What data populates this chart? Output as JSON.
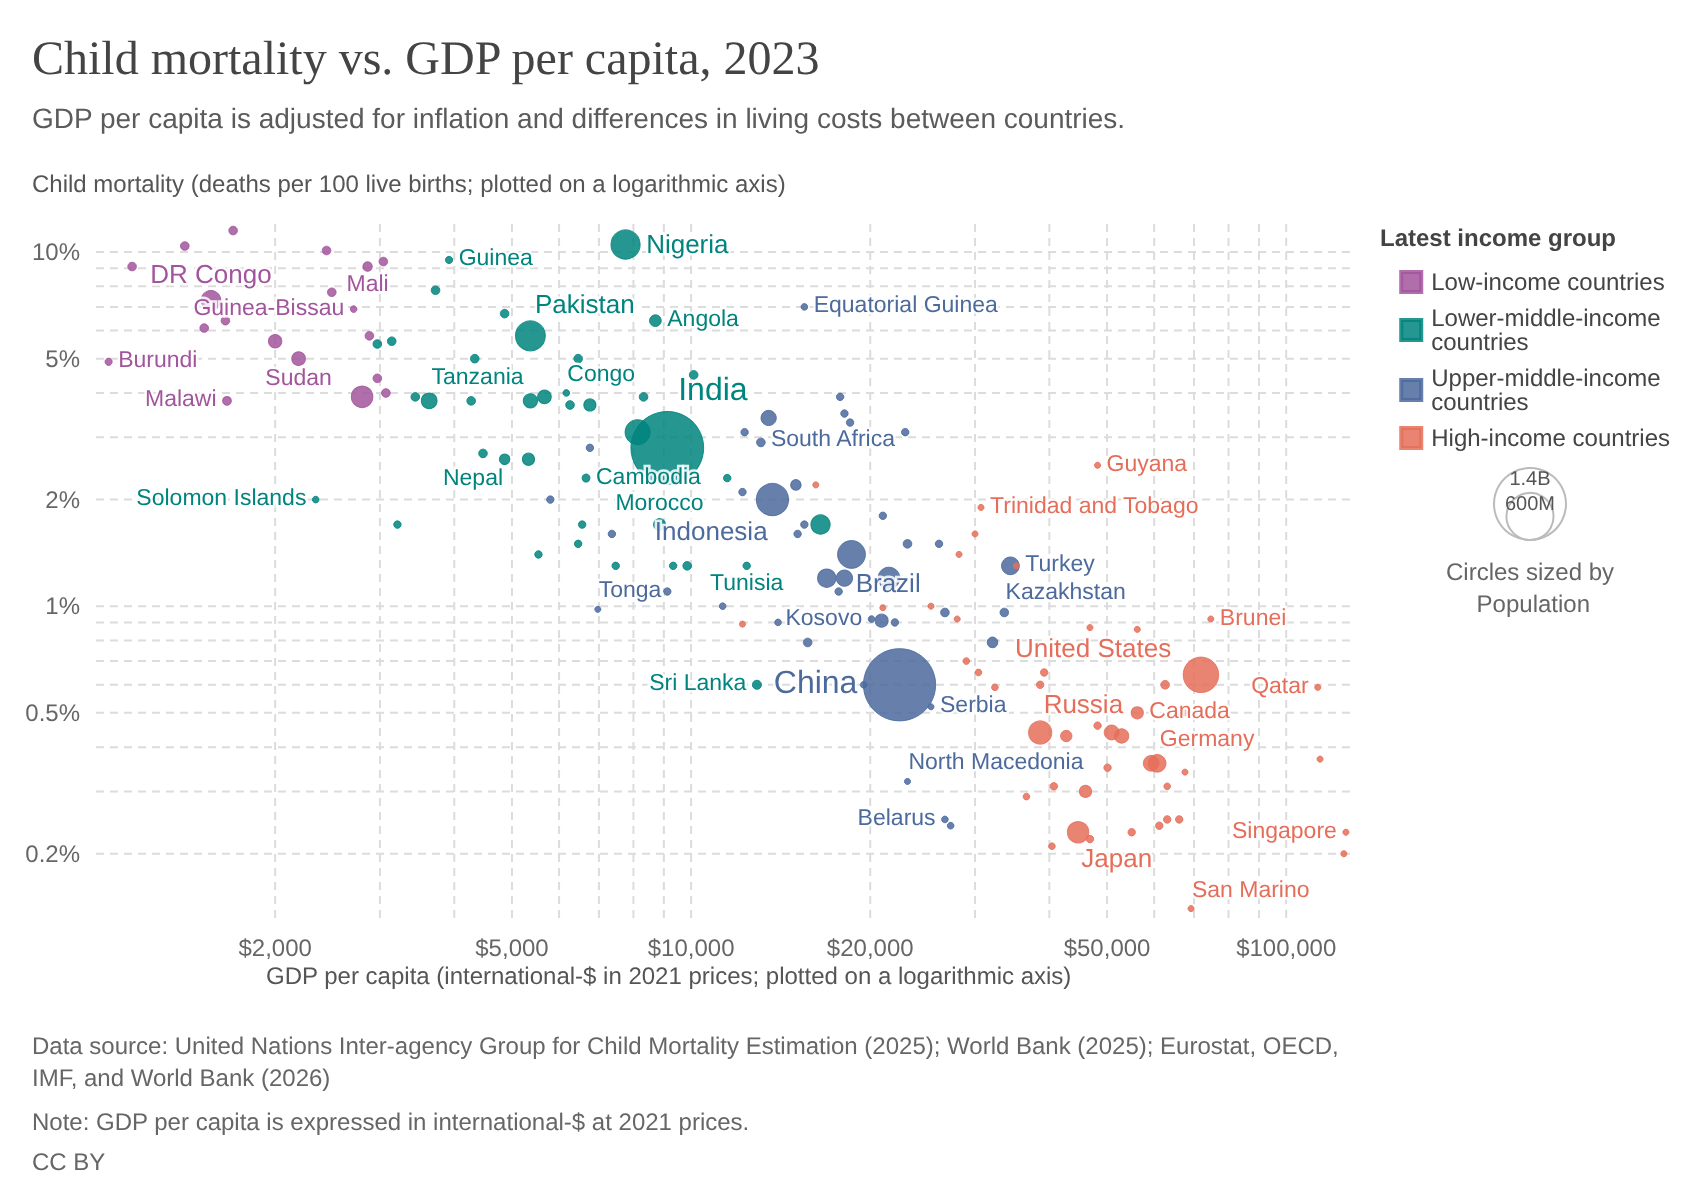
{
  "chart_data": {
    "type": "bubble",
    "title": "Child mortality vs. GDP per capita, 2023",
    "subtitle": "GDP per capita is adjusted for inflation and differences in living costs between countries.",
    "xlabel": "GDP per capita (international-$ in 2021 prices; plotted on a logarithmic axis)",
    "ylabel": "Child mortality (deaths per 100 live births; plotted on a logarithmic axis)",
    "legend_title": "Latest income group",
    "legend": "top right",
    "grid": true,
    "log": "xy",
    "marker": "circle",
    "xlim": [
      1000,
      130000
    ],
    "ylim": [
      0.13,
      12
    ],
    "xticks": [
      {
        "value": 2000,
        "label": "$2,000"
      },
      {
        "value": 3000,
        "label": null
      },
      {
        "value": 4000,
        "label": null
      },
      {
        "value": 5000,
        "label": "$5,000"
      },
      {
        "value": 6000,
        "label": null
      },
      {
        "value": 7000,
        "label": null
      },
      {
        "value": 8000,
        "label": null
      },
      {
        "value": 9000,
        "label": null
      },
      {
        "value": 10000,
        "label": "$10,000"
      },
      {
        "value": 20000,
        "label": "$20,000"
      },
      {
        "value": 30000,
        "label": null
      },
      {
        "value": 40000,
        "label": null
      },
      {
        "value": 50000,
        "label": "$50,000"
      },
      {
        "value": 60000,
        "label": null
      },
      {
        "value": 70000,
        "label": null
      },
      {
        "value": 80000,
        "label": null
      },
      {
        "value": 90000,
        "label": null
      },
      {
        "value": 100000,
        "label": "$100,000"
      }
    ],
    "yticks": [
      {
        "value": 0.2,
        "label": "0.2%"
      },
      {
        "value": 0.3,
        "label": null
      },
      {
        "value": 0.4,
        "label": null
      },
      {
        "value": 0.5,
        "label": "0.5%"
      },
      {
        "value": 0.6,
        "label": null
      },
      {
        "value": 0.7,
        "label": null
      },
      {
        "value": 0.8,
        "label": null
      },
      {
        "value": 0.9,
        "label": null
      },
      {
        "value": 1,
        "label": "1%"
      },
      {
        "value": 2,
        "label": "2%"
      },
      {
        "value": 3,
        "label": null
      },
      {
        "value": 4,
        "label": null
      },
      {
        "value": 5,
        "label": "5%"
      },
      {
        "value": 6,
        "label": null
      },
      {
        "value": 7,
        "label": null
      },
      {
        "value": 8,
        "label": null
      },
      {
        "value": 9,
        "label": null
      },
      {
        "value": 10,
        "label": "10%"
      }
    ],
    "size_legend": [
      {
        "value": 1400,
        "label": "1.4B"
      },
      {
        "value": 600,
        "label": "600M"
      }
    ],
    "series": [
      {
        "name": "Low-income countries",
        "color": "#a2559c",
        "x": [
          1700,
          1410,
          1150,
          2440,
          2860,
          3040,
          1560,
          1650,
          1520,
          2490,
          2710,
          2000,
          2190,
          1050,
          1660,
          2800,
          2970,
          3070,
          2880
        ],
        "values": [
          11.5,
          10.4,
          9.1,
          10.1,
          9.1,
          9.4,
          7.3,
          6.4,
          6.1,
          7.7,
          6.9,
          5.6,
          5.0,
          4.9,
          3.8,
          3.9,
          4.4,
          4.0,
          5.8
        ],
        "sizes": [
          20,
          20,
          20,
          20,
          24,
          20,
          105,
          20,
          20,
          20,
          12,
          48,
          50,
          14,
          21,
          125,
          20,
          20,
          20
        ]
      },
      {
        "name": "Lower-middle-income countries",
        "color": "#00847e",
        "x": [
          3920,
          7760,
          3720,
          4860,
          5370,
          2970,
          3140,
          4330,
          6460,
          8710,
          3630,
          3440,
          4270,
          5370,
          5670,
          6170,
          6260,
          6760,
          8320,
          10100,
          4860,
          4470,
          5330,
          8130,
          9120,
          6660,
          2340,
          3210,
          5540,
          6560,
          6460,
          7470,
          8850,
          11500,
          16500,
          12400,
          9330,
          9850,
          12900
        ],
        "values": [
          9.5,
          10.5,
          7.8,
          6.7,
          5.8,
          5.5,
          5.6,
          5.0,
          5.0,
          6.4,
          3.8,
          3.9,
          3.8,
          3.8,
          3.9,
          4.0,
          3.7,
          3.7,
          3.9,
          4.5,
          2.6,
          2.7,
          2.6,
          3.1,
          2.8,
          2.3,
          2.0,
          1.7,
          1.4,
          1.7,
          1.5,
          1.3,
          1.7,
          2.3,
          1.7,
          1.3,
          1.3,
          1.3,
          0.6
        ],
        "sizes": [
          14,
          230,
          20,
          20,
          240,
          20,
          20,
          20,
          20,
          37,
          67,
          20,
          20,
          55,
          50,
          12,
          20,
          40,
          20,
          20,
          30,
          20,
          40,
          170,
          1430,
          17,
          12,
          15,
          15,
          15,
          15,
          15,
          38,
          15,
          100,
          15,
          15,
          20,
          22
        ]
      },
      {
        "name": "Upper-middle-income countries",
        "color": "#4c6a9c",
        "x": [
          15500,
          6760,
          5800,
          7360,
          6970,
          13500,
          17800,
          18100,
          18500,
          22900,
          12300,
          13100,
          13700,
          15000,
          12200,
          15500,
          21000,
          18600,
          23100,
          26100,
          16900,
          18100,
          21500,
          15100,
          34400,
          9120,
          11300,
          14000,
          17700,
          20100,
          20900,
          22000,
          26700,
          33600,
          22400,
          15700,
          19500,
          25300,
          32100,
          23100,
          26700,
          27300
        ],
        "values": [
          7.0,
          2.8,
          2.0,
          1.6,
          0.98,
          3.4,
          3.9,
          3.5,
          3.3,
          3.1,
          3.1,
          2.9,
          2.0,
          2.2,
          2.1,
          1.7,
          1.8,
          1.4,
          1.5,
          1.5,
          1.2,
          1.2,
          1.2,
          1.6,
          1.3,
          1.1,
          1.0,
          0.9,
          1.1,
          0.92,
          0.91,
          0.9,
          0.96,
          0.96,
          0.6,
          0.79,
          0.6,
          0.52,
          0.79,
          0.32,
          0.25,
          0.24
        ],
        "sizes": [
          12,
          15,
          15,
          15,
          10,
          63,
          15,
          15,
          15,
          15,
          15,
          20,
          280,
          30,
          15,
          15,
          15,
          210,
          20,
          15,
          90,
          72,
          130,
          15,
          85,
          15,
          12,
          12,
          15,
          12,
          46,
          15,
          20,
          20,
          1410,
          20,
          12,
          10,
          30,
          10,
          12,
          12
        ]
      },
      {
        "name": "High-income countries",
        "color": "#e56e5a",
        "x": [
          48200,
          30700,
          30000,
          28200,
          16200,
          35200,
          12200,
          21000,
          25300,
          28000,
          29000,
          30400,
          32400,
          46800,
          56200,
          74700,
          39200,
          38600,
          71900,
          62600,
          113000,
          56200,
          67600,
          48200,
          38600,
          42700,
          50900,
          52900,
          60700,
          59300,
          67600,
          50100,
          114000,
          40700,
          46000,
          63100,
          36600,
          44700,
          46800,
          55000,
          61200,
          63100,
          66100,
          40400,
          126000,
          125000,
          69200
        ],
        "values": [
          2.5,
          1.9,
          1.6,
          1.4,
          2.2,
          1.3,
          0.89,
          0.99,
          1.0,
          0.92,
          0.7,
          0.65,
          0.59,
          0.87,
          0.86,
          0.92,
          0.65,
          0.6,
          0.64,
          0.6,
          0.59,
          0.5,
          0.5,
          0.46,
          0.44,
          0.43,
          0.44,
          0.43,
          0.36,
          0.36,
          0.34,
          0.35,
          0.37,
          0.31,
          0.3,
          0.31,
          0.29,
          0.23,
          0.22,
          0.23,
          0.24,
          0.25,
          0.25,
          0.21,
          0.23,
          0.2,
          0.14
        ],
        "sizes": [
          10,
          10,
          10,
          10,
          10,
          10,
          10,
          10,
          10,
          10,
          12,
          12,
          12,
          10,
          10,
          10,
          15,
          15,
          340,
          20,
          10,
          40,
          10,
          15,
          145,
          35,
          60,
          55,
          84,
          66,
          10,
          15,
          10,
          15,
          40,
          12,
          12,
          124,
          15,
          15,
          15,
          15,
          15,
          12,
          10,
          10,
          10
        ]
      }
    ],
    "annotations": [
      "Circles sized by Population",
      "Data source: United Nations Inter-agency Group for Child Mortality Estimation (2025); World Bank (2025); Eurostat, OECD, IMF, and World Bank (2026)",
      "Note: GDP per capita is expressed in international-$ at 2021 prices.",
      "CC BY",
      {
        "text": "Mali",
        "x": 2860,
        "y": 9.1
      },
      {
        "text": "DR Congo",
        "x": 1560,
        "y": 7.3
      },
      {
        "text": "Guinea-Bissau",
        "x": 2710,
        "y": 6.9
      },
      {
        "text": "Sudan",
        "x": 2190,
        "y": 5.0
      },
      {
        "text": "Burundi",
        "x": 1050,
        "y": 4.9
      },
      {
        "text": "Malawi",
        "x": 1660,
        "y": 3.8
      },
      {
        "text": "Guinea",
        "x": 3920,
        "y": 9.5
      },
      {
        "text": "Nigeria",
        "x": 7760,
        "y": 10.5
      },
      {
        "text": "Pakistan",
        "x": 5370,
        "y": 5.8
      },
      {
        "text": "Angola",
        "x": 8710,
        "y": 6.4
      },
      {
        "text": "Tanzania",
        "x": 3630,
        "y": 3.8
      },
      {
        "text": "Congo",
        "x": 6170,
        "y": 4.0
      },
      {
        "text": "India",
        "x": 9120,
        "y": 2.8
      },
      {
        "text": "Nepal",
        "x": 4860,
        "y": 2.6
      },
      {
        "text": "Cambodia",
        "x": 6660,
        "y": 2.3
      },
      {
        "text": "Solomon Islands",
        "x": 2340,
        "y": 2.0
      },
      {
        "text": "Morocco",
        "x": 8850,
        "y": 1.7
      },
      {
        "text": "Tunisia",
        "x": 12400,
        "y": 1.3
      },
      {
        "text": "Sri Lanka",
        "x": 12900,
        "y": 0.6
      },
      {
        "text": "Equatorial Guinea",
        "x": 15500,
        "y": 7.0
      },
      {
        "text": "South Africa",
        "x": 13500,
        "y": 3.4
      },
      {
        "text": "Indonesia",
        "x": 13700,
        "y": 2.0
      },
      {
        "text": "Brazil",
        "x": 18600,
        "y": 1.4
      },
      {
        "text": "Turkey",
        "x": 34400,
        "y": 1.3
      },
      {
        "text": "Tonga",
        "x": 6970,
        "y": 0.98
      },
      {
        "text": "Kosovo",
        "x": 20100,
        "y": 0.92
      },
      {
        "text": "Kazakhstan",
        "x": 33600,
        "y": 0.96
      },
      {
        "text": "China",
        "x": 22400,
        "y": 0.6
      },
      {
        "text": "Serbia",
        "x": 25300,
        "y": 0.52
      },
      {
        "text": "North Macedonia",
        "x": 23100,
        "y": 0.32
      },
      {
        "text": "Belarus",
        "x": 26700,
        "y": 0.25
      },
      {
        "text": "Guyana",
        "x": 48200,
        "y": 2.5
      },
      {
        "text": "Trinidad and Tobago",
        "x": 30700,
        "y": 1.9
      },
      {
        "text": "Brunei",
        "x": 74700,
        "y": 0.92
      },
      {
        "text": "United States",
        "x": 71900,
        "y": 0.64
      },
      {
        "text": "Qatar",
        "x": 113000,
        "y": 0.59
      },
      {
        "text": "Canada",
        "x": 56200,
        "y": 0.5
      },
      {
        "text": "Russia",
        "x": 38600,
        "y": 0.44
      },
      {
        "text": "Germany",
        "x": 60700,
        "y": 0.36
      },
      {
        "text": "Japan",
        "x": 44700,
        "y": 0.23
      },
      {
        "text": "Singapore",
        "x": 126000,
        "y": 0.23
      },
      {
        "text": "San Marino",
        "x": 69200,
        "y": 0.14
      }
    ]
  }
}
